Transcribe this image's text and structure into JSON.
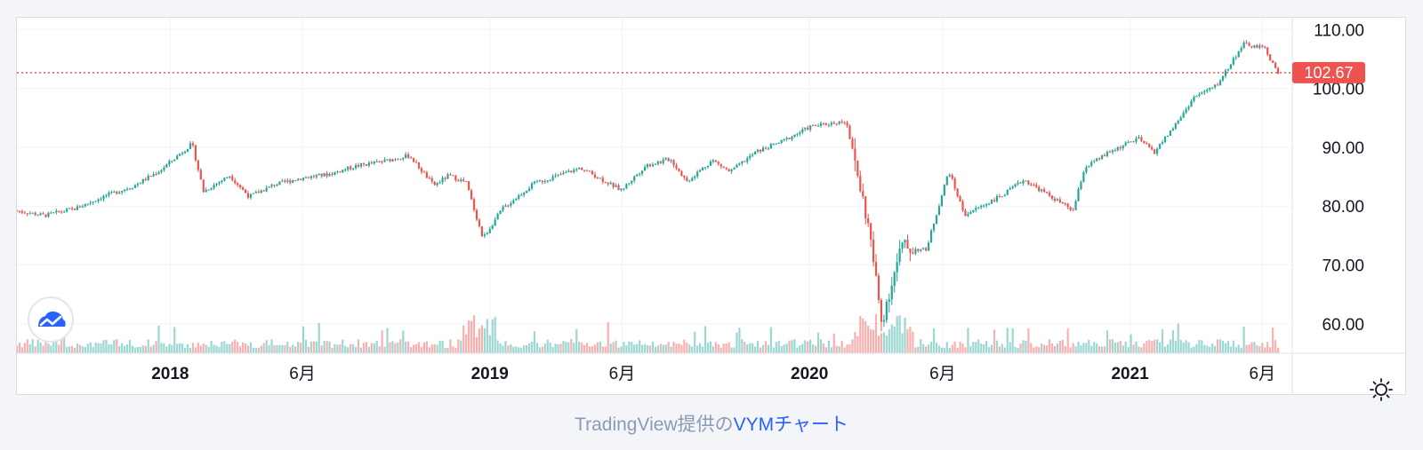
{
  "chart_data": {
    "type": "candlestick",
    "symbol": "VYM",
    "y_ticks": [
      "110.00",
      "100.00",
      "90.00",
      "80.00",
      "70.00",
      "60.00"
    ],
    "ylim": [
      55,
      112
    ],
    "x_ticks": [
      {
        "label": "2018",
        "date": "2018-01-01",
        "bold": true
      },
      {
        "label": "6月",
        "date": "2018-06-01",
        "bold": false
      },
      {
        "label": "2019",
        "date": "2019-01-01",
        "bold": true
      },
      {
        "label": "6月",
        "date": "2019-06-01",
        "bold": false
      },
      {
        "label": "2020",
        "date": "2020-01-01",
        "bold": true
      },
      {
        "label": "6月",
        "date": "2020-06-01",
        "bold": false
      },
      {
        "label": "2021",
        "date": "2021-01-01",
        "bold": true
      },
      {
        "label": "6月",
        "date": "2021-06-01",
        "bold": false
      }
    ],
    "xlim": [
      "2017-07-10",
      "2021-06-21"
    ],
    "last_price": "102.67",
    "last_price_value": 102.67,
    "grid": true,
    "series": [
      {
        "name": "",
        "points": [
          [
            "2017-07-10",
            79.2
          ],
          [
            "2017-08-10",
            78.4
          ],
          [
            "2017-09-15",
            79.6
          ],
          [
            "2017-10-20",
            81.8
          ],
          [
            "2017-11-20",
            83.4
          ],
          [
            "2017-12-20",
            86.0
          ],
          [
            "2018-01-26",
            90.6
          ],
          [
            "2018-02-08",
            82.5
          ],
          [
            "2018-03-10",
            85.2
          ],
          [
            "2018-04-01",
            81.6
          ],
          [
            "2018-05-01",
            83.7
          ],
          [
            "2018-06-01",
            84.8
          ],
          [
            "2018-07-01",
            85.4
          ],
          [
            "2018-08-01",
            86.8
          ],
          [
            "2018-09-01",
            87.6
          ],
          [
            "2018-10-01",
            88.6
          ],
          [
            "2018-10-29",
            83.5
          ],
          [
            "2018-11-15",
            85.2
          ],
          [
            "2018-12-05",
            84.0
          ],
          [
            "2018-12-24",
            74.5
          ],
          [
            "2019-01-15",
            79.5
          ],
          [
            "2019-02-20",
            83.8
          ],
          [
            "2019-04-15",
            86.5
          ],
          [
            "2019-05-31",
            82.7
          ],
          [
            "2019-06-28",
            86.9
          ],
          [
            "2019-07-26",
            88.0
          ],
          [
            "2019-08-14",
            84.2
          ],
          [
            "2019-09-12",
            87.8
          ],
          [
            "2019-10-02",
            85.8
          ],
          [
            "2019-11-01",
            89.2
          ],
          [
            "2019-12-01",
            91.0
          ],
          [
            "2020-01-02",
            93.5
          ],
          [
            "2020-02-12",
            94.5
          ],
          [
            "2020-03-09",
            76.0
          ],
          [
            "2020-03-23",
            60.5
          ],
          [
            "2020-04-15",
            73.0
          ],
          [
            "2020-05-13",
            72.5
          ],
          [
            "2020-06-08",
            86.0
          ],
          [
            "2020-06-26",
            78.5
          ],
          [
            "2020-08-10",
            82.0
          ],
          [
            "2020-09-02",
            84.5
          ],
          [
            "2020-10-28",
            79.2
          ],
          [
            "2020-11-10",
            86.5
          ],
          [
            "2020-12-10",
            89.3
          ],
          [
            "2021-01-10",
            91.5
          ],
          [
            "2021-01-29",
            89.2
          ],
          [
            "2021-02-25",
            94.5
          ],
          [
            "2021-03-15",
            98.5
          ],
          [
            "2021-04-10",
            100.5
          ],
          [
            "2021-05-10",
            107.5
          ],
          [
            "2021-06-04",
            106.8
          ],
          [
            "2021-06-18",
            102.67
          ]
        ]
      }
    ],
    "colors": {
      "up": "#26a69a",
      "down": "#ef5350",
      "price_tag": "#ef5350"
    }
  },
  "caption": {
    "provider_text": "TradingView提供の",
    "link_text": "VYMチャート"
  },
  "icons": {
    "logo": "tradingview-logo-icon",
    "settings": "sun-gear-icon"
  }
}
